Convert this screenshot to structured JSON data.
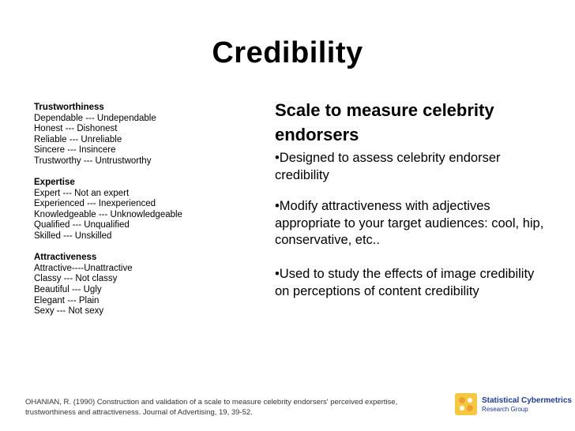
{
  "title": "Credibility",
  "scale": {
    "groups": [
      {
        "heading": "Trustworthiness",
        "items": [
          "Dependable --- Undependable",
          "Honest --- Dishonest",
          "Reliable --- Unreliable",
          "Sincere --- Insincere",
          "Trustworthy --- Untrustworthy"
        ]
      },
      {
        "heading": "Expertise",
        "items": [
          "Expert --- Not an expert",
          "Experienced --- Inexperienced",
          "Knowledgeable --- Unknowledgeable",
          "Qualified --- Unqualified",
          "Skilled --- Unskilled"
        ]
      },
      {
        "heading": "Attractiveness",
        "items": [
          "Attractive----Unattractive",
          "Classy --- Not classy",
          "Beautiful --- Ugly",
          "Elegant --- Plain",
          "Sexy --- Not sexy"
        ]
      }
    ]
  },
  "right": {
    "heading": "Scale to measure celebrity endorsers",
    "bullets": [
      "•Designed to assess celebrity endorser credibility",
      "•Modify attractiveness with adjectives appropriate to your target audiences: cool, hip, conservative, etc..",
      "•Used to study the effects of image credibility on perceptions of content credibility"
    ]
  },
  "citation": "OHANIAN, R. (1990) Construction and validation of a scale to measure celebrity endorsers' perceived expertise, trustworthiness and attractiveness. Journal of Advertising, 19, 39-52.",
  "logo": {
    "name": "Statistical Cybermetrics",
    "subtitle": "Research Group",
    "colors": {
      "orange": "#f0a030",
      "yellow": "#f5c842",
      "blue": "#1f3a93"
    }
  }
}
